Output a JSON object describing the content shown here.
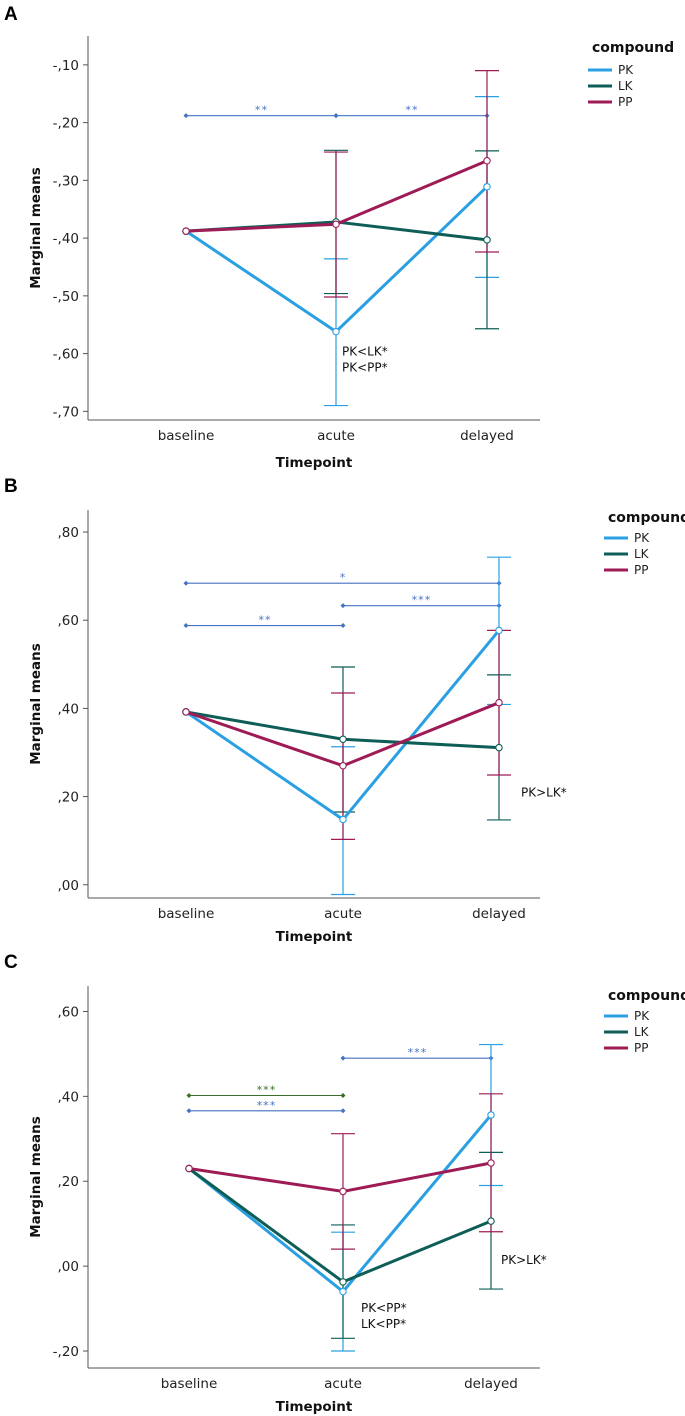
{
  "colors": {
    "PK": "#2aa0e2",
    "LK": "#0e5e57",
    "PP": "#9e1b56",
    "bracket_blue": "#4472c4",
    "bracket_green": "#3b6e2a"
  },
  "chart_data": [
    {
      "type": "line",
      "panel_label": "A",
      "ylabel": "Marginal means",
      "xlabel": "Timepoint",
      "categories": [
        "baseline",
        "acute",
        "delayed"
      ],
      "ylim": [
        -0.715,
        -0.05
      ],
      "yticks": [
        -0.1,
        -0.2,
        -0.3,
        -0.4,
        -0.5,
        -0.6,
        -0.7
      ],
      "ytick_labels": [
        "-,10",
        "-,20",
        "-,30",
        "-,40",
        "-,50",
        "-,60",
        "-,70"
      ],
      "legend_title": "compound",
      "series": [
        {
          "name": "PK",
          "values": [
            -0.388,
            -0.562,
            -0.311
          ],
          "err_lo": [
            null,
            -0.69,
            -0.468
          ],
          "err_hi": [
            null,
            -0.436,
            -0.155
          ]
        },
        {
          "name": "LK",
          "values": [
            -0.388,
            -0.372,
            -0.403
          ],
          "err_lo": [
            null,
            -0.496,
            -0.557
          ],
          "err_hi": [
            null,
            -0.248,
            -0.249
          ]
        },
        {
          "name": "PP",
          "values": [
            -0.388,
            -0.376,
            -0.266
          ],
          "err_lo": [
            null,
            -0.502,
            -0.424
          ],
          "err_hi": [
            null,
            -0.251,
            -0.11
          ]
        }
      ],
      "brackets": [
        {
          "from": 0,
          "to": 1,
          "y": -0.188,
          "label": "**",
          "color": "bracket_blue"
        },
        {
          "from": 1,
          "to": 2,
          "y": -0.188,
          "label": "**",
          "color": "bracket_blue"
        }
      ],
      "annotations": [
        {
          "cat": 1,
          "y": -0.603,
          "dx": 6,
          "lines": [
            "PK<LK*",
            "PK<PP*"
          ]
        }
      ]
    },
    {
      "type": "line",
      "panel_label": "B",
      "ylabel": "Marginal means",
      "xlabel": "Timepoint",
      "categories": [
        "baseline",
        "acute",
        "delayed"
      ],
      "ylim": [
        -0.03,
        0.85
      ],
      "yticks": [
        0.8,
        0.6,
        0.4,
        0.2,
        0.0
      ],
      "ytick_labels": [
        ",80",
        ",60",
        ",40",
        ",20",
        ",00"
      ],
      "legend_title": "compound",
      "series": [
        {
          "name": "PK",
          "values": [
            0.392,
            0.148,
            0.577
          ],
          "err_lo": [
            null,
            -0.022,
            0.409
          ],
          "err_hi": [
            null,
            0.313,
            0.743
          ]
        },
        {
          "name": "LK",
          "values": [
            0.392,
            0.33,
            0.311
          ],
          "err_lo": [
            null,
            0.165,
            0.147
          ],
          "err_hi": [
            null,
            0.494,
            0.476
          ]
        },
        {
          "name": "PP",
          "values": [
            0.392,
            0.27,
            0.413
          ],
          "err_lo": [
            null,
            0.103,
            0.249
          ],
          "err_hi": [
            null,
            0.435,
            0.577
          ]
        }
      ],
      "brackets": [
        {
          "from": 0,
          "to": 2,
          "y": 0.684,
          "label": "*",
          "color": "bracket_blue"
        },
        {
          "from": 0,
          "to": 1,
          "y": 0.588,
          "label": "**",
          "color": "bracket_blue"
        },
        {
          "from": 1,
          "to": 2,
          "y": 0.633,
          "label": "***",
          "color": "bracket_blue"
        }
      ],
      "annotations": [
        {
          "cat": 2,
          "y": 0.2,
          "dx": 22,
          "lines": [
            "PK>LK*"
          ]
        }
      ]
    },
    {
      "type": "line",
      "panel_label": "C",
      "ylabel": "Marginal means",
      "xlabel": "Timepoint",
      "categories": [
        "baseline",
        "acute",
        "delayed"
      ],
      "ylim": [
        -0.24,
        0.66
      ],
      "yticks": [
        0.6,
        0.4,
        0.2,
        0.0,
        -0.2
      ],
      "ytick_labels": [
        ",60",
        ",40",
        ",20",
        ",00",
        "-,20"
      ],
      "legend_title": "compound",
      "series": [
        {
          "name": "PK",
          "values": [
            0.23,
            -0.06,
            0.356
          ],
          "err_lo": [
            null,
            -0.2,
            0.19
          ],
          "err_hi": [
            null,
            0.08,
            0.522
          ]
        },
        {
          "name": "LK",
          "values": [
            0.23,
            -0.037,
            0.106
          ],
          "err_lo": [
            null,
            -0.17,
            -0.054
          ],
          "err_hi": [
            null,
            0.097,
            0.268
          ]
        },
        {
          "name": "PP",
          "values": [
            0.23,
            0.176,
            0.243
          ],
          "err_lo": [
            null,
            0.04,
            0.081
          ],
          "err_hi": [
            null,
            0.312,
            0.406
          ]
        }
      ],
      "brackets": [
        {
          "from": 0,
          "to": 1,
          "y": 0.402,
          "label": "***",
          "color": "bracket_green"
        },
        {
          "from": 0,
          "to": 1,
          "y": 0.366,
          "label": "***",
          "color": "bracket_blue"
        },
        {
          "from": 1,
          "to": 2,
          "y": 0.49,
          "label": "***",
          "color": "bracket_blue"
        }
      ],
      "annotations": [
        {
          "cat": 1,
          "y": -0.108,
          "dx": 18,
          "lines": [
            "PK<PP*",
            "LK<PP*"
          ]
        },
        {
          "cat": 2,
          "y": 0.005,
          "dx": 10,
          "lines": [
            "PK>LK*"
          ]
        }
      ]
    }
  ]
}
